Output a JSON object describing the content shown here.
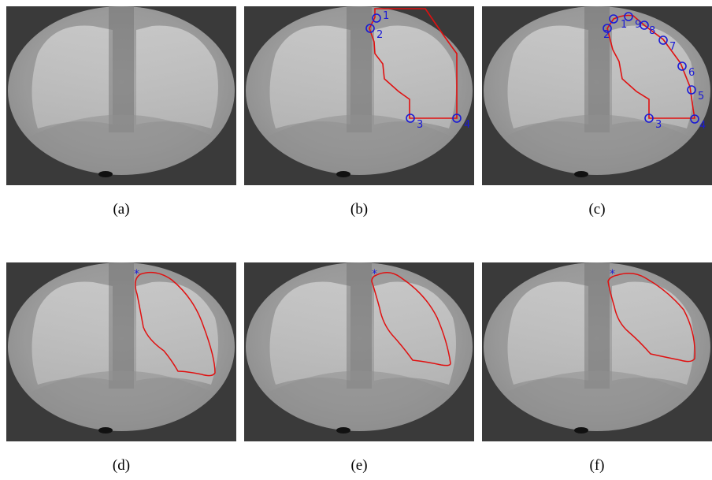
{
  "figure": {
    "captions": [
      "(a)",
      "(b)",
      "(c)",
      "(d)",
      "(e)",
      "(f)"
    ],
    "panel_b": {
      "point_labels": [
        "1",
        "2",
        "3",
        "4"
      ]
    },
    "panel_c": {
      "point_labels": [
        "1",
        "2",
        "3",
        "4",
        "5",
        "6",
        "7",
        "8",
        "9"
      ]
    },
    "colors": {
      "contour": "#e01010",
      "markers": "#1a1ad6",
      "background": "#3a3a3a"
    }
  }
}
